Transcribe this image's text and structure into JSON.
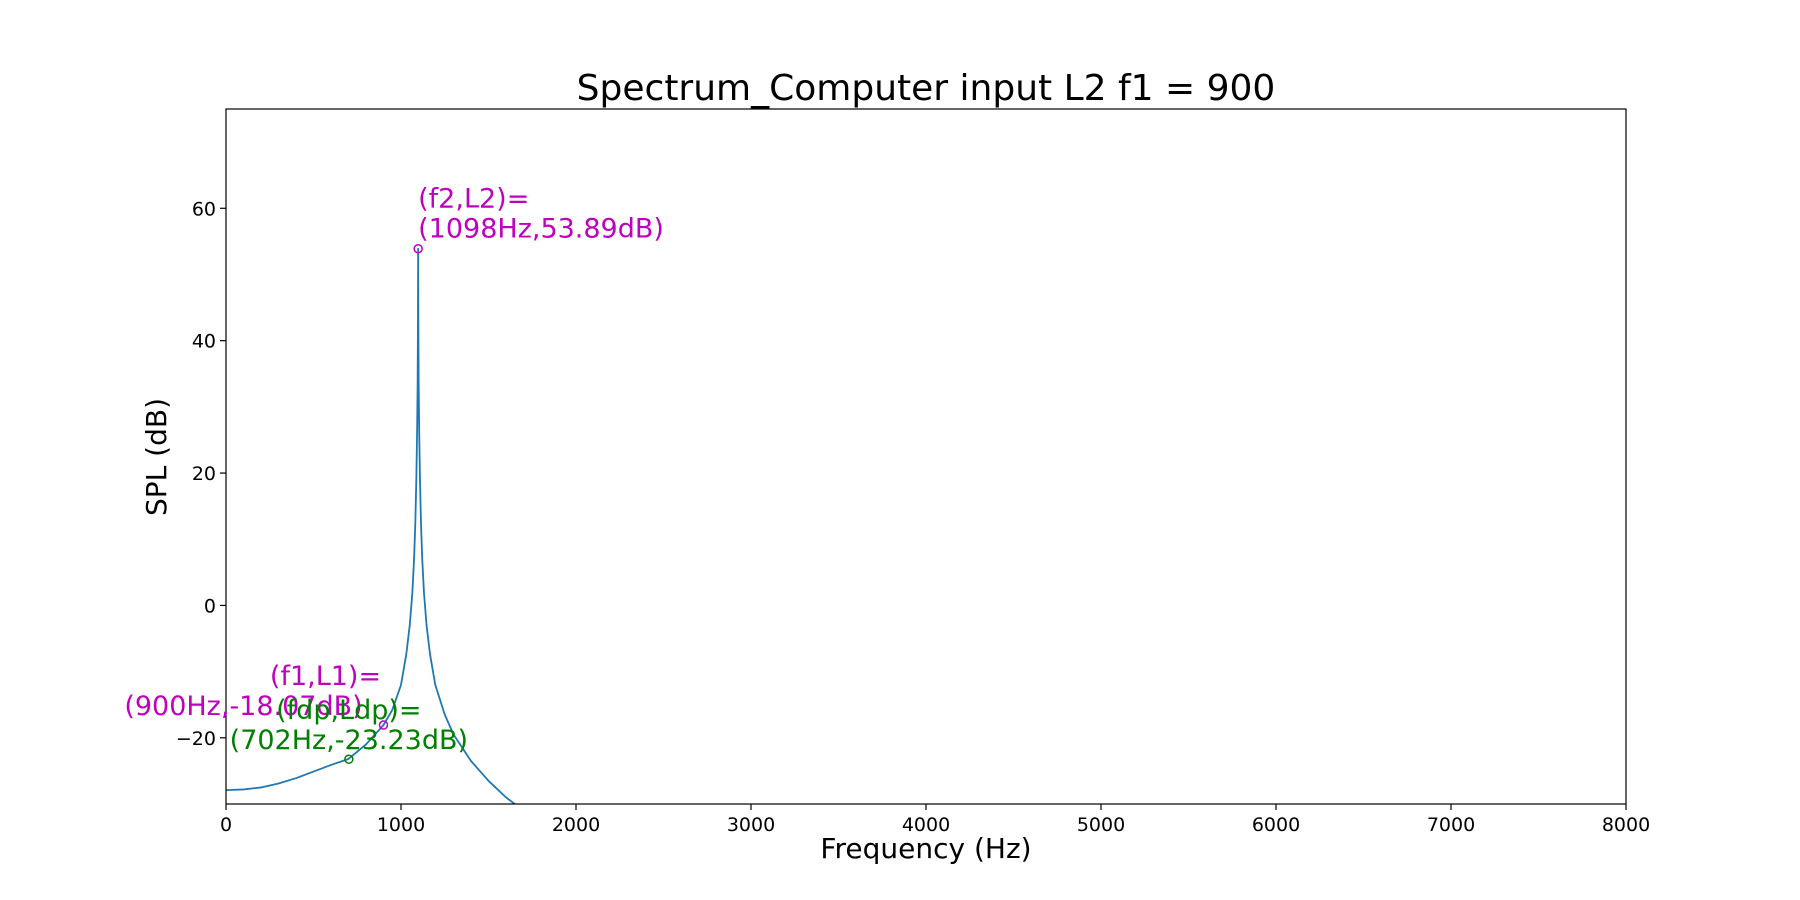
{
  "chart_data": {
    "type": "line",
    "title": "Spectrum_Computer input L2 f1 = 900",
    "xlabel": "Frequency (Hz)",
    "ylabel": "SPL (dB)",
    "xlim": [
      0,
      8000
    ],
    "ylim": [
      -30,
      75
    ],
    "xticks": [
      0,
      1000,
      2000,
      3000,
      4000,
      5000,
      6000,
      7000,
      8000
    ],
    "xtick_labels": [
      "0",
      "1000",
      "2000",
      "3000",
      "4000",
      "5000",
      "6000",
      "7000",
      "8000"
    ],
    "yticks": [
      -20,
      0,
      20,
      40,
      60
    ],
    "ytick_labels": [
      "−20",
      "0",
      "20",
      "40",
      "60"
    ],
    "grid": false,
    "series": [
      {
        "name": "spectrum",
        "color": "#1f77b4",
        "x": [
          0,
          100,
          200,
          300,
          400,
          500,
          600,
          700,
          800,
          900,
          950,
          1000,
          1030,
          1050,
          1065,
          1075,
          1082,
          1088,
          1092,
          1095,
          1097,
          1098,
          1099,
          1101,
          1104,
          1108,
          1114,
          1121,
          1131,
          1146,
          1166,
          1196,
          1250,
          1300,
          1400,
          1500,
          1600,
          1700
        ],
        "y": [
          -27.9,
          -27.8,
          -27.5,
          -26.9,
          -26.1,
          -25.1,
          -24.1,
          -23.2,
          -21.0,
          -18.07,
          -15.8,
          -12.0,
          -7.4,
          -3.0,
          2.0,
          7.2,
          12.6,
          19.6,
          26.3,
          33.3,
          43.4,
          53.89,
          43.4,
          33.3,
          26.3,
          19.6,
          12.6,
          7.2,
          2.0,
          -3.0,
          -7.4,
          -12.0,
          -16.5,
          -19.5,
          -23.5,
          -26.5,
          -29.0,
          -31.0
        ]
      }
    ],
    "annotations": [
      {
        "id": "f2",
        "label_line1": "(f2,L2)=",
        "label_line2": "(1098Hz,53.89dB)",
        "x": 1098,
        "y": 53.89,
        "color": "#bf00bf"
      },
      {
        "id": "f1",
        "label_line1": "(f1,L1)=",
        "label_line2": "(900Hz,-18.07dB)",
        "x": 900,
        "y": -18.07,
        "color": "#bf00bf"
      },
      {
        "id": "fdp",
        "label_line1": "(fdp,Ldp)=",
        "label_line2": "(702Hz,-23.23dB)",
        "x": 702,
        "y": -23.23,
        "color": "#008000"
      }
    ]
  }
}
